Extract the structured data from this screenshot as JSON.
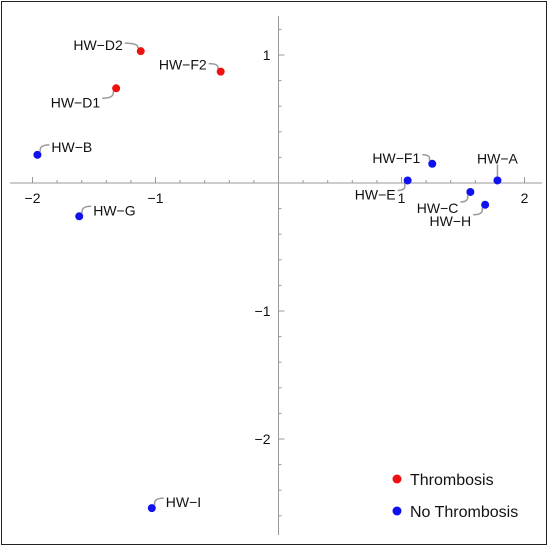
{
  "chart_data": {
    "type": "scatter",
    "title": "",
    "xlabel": "",
    "ylabel": "",
    "xlim": [
      -2.1,
      2.1
    ],
    "ylim": [
      -2.75,
      1.3
    ],
    "x_ticks": [
      -2,
      -1,
      1,
      2
    ],
    "y_ticks": [
      1,
      -1,
      -2
    ],
    "x_tick_labels": [
      "−2",
      "−1",
      "1",
      "2"
    ],
    "y_tick_labels": [
      "1",
      "−1",
      "−2"
    ],
    "grid": false,
    "legend_position": "bottom-right",
    "series": [
      {
        "name": "Thrombosis",
        "color": "#ee1111",
        "points": [
          {
            "label": "HW−D2",
            "x": -1.12,
            "y": 1.03
          },
          {
            "label": "HW−F2",
            "x": -0.47,
            "y": 0.87
          },
          {
            "label": "HW−D1",
            "x": -1.32,
            "y": 0.74
          }
        ]
      },
      {
        "name": "No Thrombosis",
        "color": "#1111ee",
        "points": [
          {
            "label": "HW−B",
            "x": -1.96,
            "y": 0.22
          },
          {
            "label": "HW−G",
            "x": -1.62,
            "y": -0.26
          },
          {
            "label": "HW−F1",
            "x": 1.25,
            "y": 0.15
          },
          {
            "label": "HW−A",
            "x": 1.78,
            "y": 0.02
          },
          {
            "label": "HW−E",
            "x": 1.05,
            "y": 0.02
          },
          {
            "label": "HW−C",
            "x": 1.56,
            "y": -0.07
          },
          {
            "label": "HW−H",
            "x": 1.68,
            "y": -0.17
          },
          {
            "label": "HW−I",
            "x": -1.03,
            "y": -2.54
          }
        ]
      }
    ]
  }
}
